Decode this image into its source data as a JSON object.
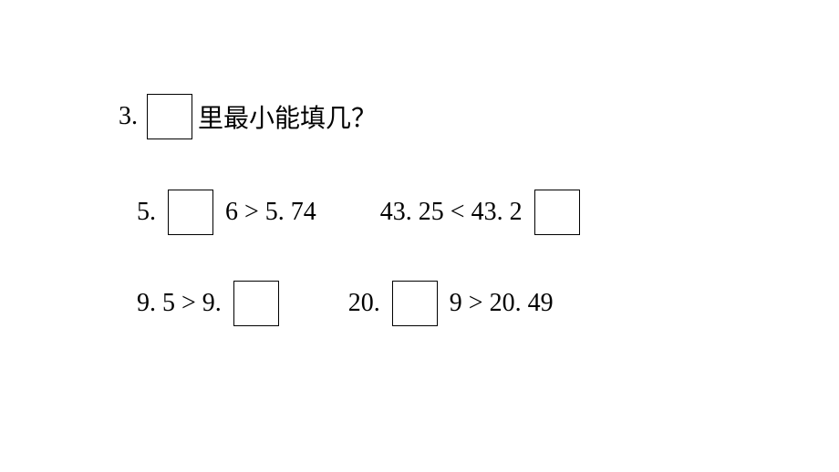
{
  "question": {
    "number": "3.",
    "text": "里最小能填几？"
  },
  "problems": {
    "row1": {
      "item1": {
        "before": "5. ",
        "after": " 6 > 5. 74"
      },
      "item2": {
        "before": "43. 25 < 43. 2 ",
        "after": ""
      }
    },
    "row2": {
      "item1": {
        "before": "9. 5 > 9. ",
        "after": ""
      },
      "item2": {
        "before": "20. ",
        "after": " 9 > 20. 49"
      }
    }
  },
  "styling": {
    "background_color": "#ffffff",
    "text_color": "#000000",
    "box_border_color": "#000000",
    "box_size": 50,
    "question_fontsize": 28,
    "problem_fontsize": 28,
    "chinese_font": "SimSun",
    "number_font": "Times New Roman"
  }
}
